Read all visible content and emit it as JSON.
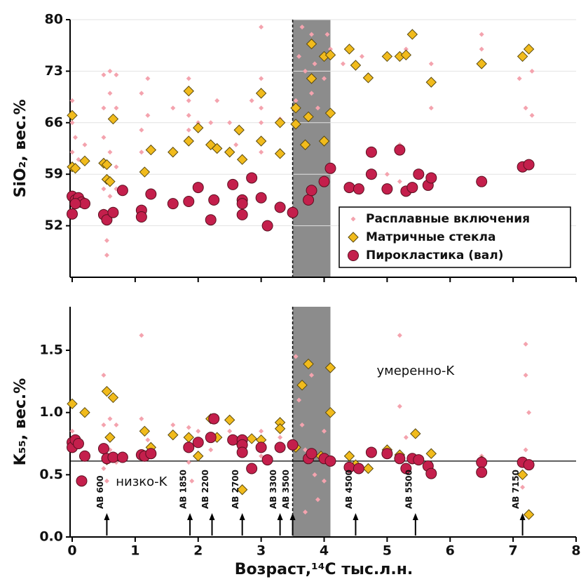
{
  "chart_data": [
    {
      "type": "scatter",
      "ylabel": "SiO₂, вес.%",
      "xlim": [
        0,
        8
      ],
      "xticks": [
        0,
        1,
        2,
        3,
        4,
        5,
        6,
        7,
        8
      ],
      "xtick_labels": false,
      "ylim": [
        45,
        80
      ],
      "yticks": [
        52,
        59,
        66,
        73,
        80
      ],
      "grid": true,
      "legend": "lower right",
      "shade": [
        3.5,
        4.1
      ],
      "vline": 3.5,
      "series": [
        {
          "name": "Расплавные включения",
          "color": "#f4a3ae",
          "marker": "small-diamond",
          "x": [
            0,
            0,
            0,
            0.05,
            0.1,
            0.2,
            0.5,
            0.5,
            0.5,
            0.5,
            0.5,
            0.55,
            0.55,
            0.6,
            0.6,
            0.6,
            0.6,
            0.7,
            0.7,
            0.7,
            0.7,
            1.1,
            1.1,
            1.1,
            1.2,
            1.2,
            1.6,
            1.6,
            1.85,
            1.85,
            1.85,
            1.85,
            2.0,
            2.2,
            2.3,
            2.5,
            2.6,
            2.85,
            3.0,
            3.0,
            3.0,
            3.0,
            3.0,
            3.3,
            3.55,
            3.6,
            3.65,
            3.7,
            3.8,
            3.8,
            3.85,
            3.9,
            4.0,
            4.05,
            4.1,
            4.3,
            4.6,
            5.0,
            5.2,
            5.2,
            5.3,
            5.7,
            5.7,
            6.5,
            6.5,
            7.1,
            7.2,
            7.3,
            7.3
          ],
          "values": [
            69,
            66,
            62,
            64,
            61,
            63,
            72.5,
            68,
            64,
            57,
            54,
            50,
            48,
            73,
            70,
            62,
            56,
            72.5,
            68,
            60,
            57,
            70,
            65,
            62,
            72,
            67,
            68,
            62,
            72,
            69,
            67,
            65,
            66,
            66,
            69,
            66,
            63,
            69,
            79,
            72,
            68,
            66,
            62,
            66.5,
            69,
            75,
            79,
            73,
            78,
            70,
            74,
            68,
            72,
            78,
            76,
            74,
            75,
            59,
            63,
            58,
            76,
            68,
            74,
            76,
            78,
            72,
            68,
            73,
            67
          ]
        },
        {
          "name": "Матричные стекла",
          "color": "#f1bb1c",
          "marker": "diamond",
          "x": [
            0,
            0,
            0.05,
            0.2,
            0.5,
            0.55,
            0.55,
            0.6,
            0.65,
            1.15,
            1.25,
            1.6,
            1.85,
            1.85,
            2,
            2.2,
            2.3,
            2.5,
            2.65,
            2.7,
            3,
            3,
            3.3,
            3.3,
            3.55,
            3.55,
            3.7,
            3.75,
            3.8,
            3.8,
            4,
            4,
            4.1,
            4.1,
            4.4,
            4.5,
            4.7,
            5,
            5.2,
            5.3,
            5.4,
            5.7,
            6.5,
            7.15,
            7.25
          ],
          "values": [
            67,
            60,
            59.8,
            60.8,
            60.5,
            60.3,
            58.3,
            58,
            66.5,
            59.3,
            62.3,
            62,
            70.3,
            63.5,
            65.3,
            63,
            62.5,
            62,
            65,
            61,
            70,
            63.5,
            61.8,
            66,
            65.8,
            68,
            63,
            66.8,
            76.7,
            72,
            63.5,
            75,
            67.3,
            75.2,
            76,
            73.8,
            72.1,
            75,
            75,
            75.2,
            78,
            71.5,
            74,
            75,
            76
          ]
        },
        {
          "name": "Пирокластика (вал)",
          "color": "#c41f4c",
          "marker": "circle",
          "x": [
            0,
            0,
            0.05,
            0.1,
            0.15,
            0.2,
            0.05,
            0.5,
            0.55,
            0.65,
            0.8,
            1.1,
            1.1,
            1.25,
            1.6,
            1.85,
            2,
            2.2,
            2.25,
            2.55,
            2.7,
            2.7,
            2.7,
            2.85,
            3,
            3.1,
            3.3,
            3.5,
            3.75,
            3.8,
            4,
            4.1,
            4.4,
            4.55,
            4.75,
            4.75,
            5,
            5.2,
            5.3,
            5.4,
            5.5,
            5.65,
            5.7,
            6.5,
            7.15,
            7.25
          ],
          "values": [
            56,
            53.6,
            55.5,
            55.8,
            55.2,
            55,
            55,
            53.5,
            52.8,
            53.8,
            56.8,
            54.1,
            53.2,
            56.3,
            55,
            55.3,
            57.2,
            52.8,
            55.5,
            57.6,
            55.5,
            55,
            53.5,
            58.5,
            55.8,
            52,
            54.5,
            53.8,
            55.5,
            56.8,
            58,
            59.8,
            57.2,
            57,
            62,
            59,
            57,
            62.3,
            56.7,
            57.2,
            59,
            57.5,
            58.5,
            58,
            60,
            60.3
          ]
        }
      ]
    },
    {
      "type": "scatter",
      "ylabel": "K₅₅, вес.%",
      "xlabel": "Возраст,¹⁴C тыс.л.н.",
      "xlim": [
        0,
        8
      ],
      "xticks": [
        0,
        1,
        2,
        3,
        4,
        5,
        6,
        7,
        8
      ],
      "xtick_labels": true,
      "ylim": [
        0,
        1.85
      ],
      "yticks": [
        {
          "value": 0,
          "label": "0.0"
        },
        0.5,
        {
          "value": 1,
          "label": "1.0"
        },
        1.5
      ],
      "grid": false,
      "shade": [
        3.5,
        4.1
      ],
      "vline": 3.5,
      "hline": 0.61,
      "annotations": [
        {
          "text": "умеренно-K",
          "x": 5.45,
          "y": 1.33
        },
        {
          "text": "низко-K",
          "x": 1.1,
          "y": 0.44
        }
      ],
      "arrows": [
        {
          "x": 0.55,
          "label": "AB 600"
        },
        {
          "x": 1.87,
          "label": "AB 1850"
        },
        {
          "x": 2.22,
          "label": "AB 2200"
        },
        {
          "x": 2.7,
          "label": "AB 2700"
        },
        {
          "x": 3.3,
          "label": "AB 3300"
        },
        {
          "x": 3.5,
          "label": "AB 3500"
        },
        {
          "x": 4.5,
          "label": "AB 4500"
        },
        {
          "x": 5.45,
          "label": "AB 5500"
        },
        {
          "x": 7.15,
          "label": "AB 7150"
        }
      ],
      "series": [
        {
          "color": "#f4a3ae",
          "marker": "small-diamond",
          "x": [
            0,
            0,
            0.05,
            0.5,
            0.5,
            0.5,
            0.55,
            0.6,
            0.6,
            0.7,
            0.7,
            1.1,
            1.1,
            1.2,
            1.6,
            1.85,
            1.85,
            1.9,
            2.0,
            2.2,
            2.5,
            2.7,
            3.0,
            3.0,
            3.3,
            3.55,
            3.6,
            3.65,
            3.7,
            3.7,
            3.8,
            3.85,
            3.9,
            4.0,
            4.0,
            4.5,
            5.2,
            5.2,
            5.3,
            5.4,
            5.7,
            6.5,
            7.2,
            7.2,
            7.25,
            7.2,
            7.15
          ],
          "values": [
            0.85,
            0.7,
            0.8,
            1.3,
            0.9,
            0.55,
            0.45,
            0.95,
            0.7,
            0.9,
            0.6,
            1.62,
            0.95,
            0.78,
            0.9,
            0.88,
            0.6,
            0.45,
            0.85,
            0.7,
            0.85,
            0.8,
            0.85,
            0.65,
            0.8,
            1.45,
            1.1,
            0.9,
            0.7,
            0.2,
            1.3,
            0.5,
            0.3,
            0.85,
            0.45,
            0.6,
            1.62,
            1.05,
            0.8,
            0.6,
            0.65,
            0.65,
            1.55,
            1.3,
            1,
            0.7,
            0.4
          ]
        },
        {
          "color": "#f1bb1c",
          "marker": "diamond",
          "x": [
            0,
            0.05,
            0.2,
            0.55,
            0.6,
            0.65,
            0.55,
            1.15,
            1.25,
            1.6,
            1.85,
            2,
            2.2,
            2.3,
            2.5,
            2.65,
            2.7,
            2.85,
            3,
            3.3,
            3.3,
            3.55,
            3.65,
            3.75,
            3.95,
            4.1,
            4.1,
            4.4,
            4.5,
            4.7,
            5,
            5.2,
            5.45,
            5.7,
            6.5,
            7.15,
            7.25
          ],
          "values": [
            1.07,
            0.75,
            1,
            1.17,
            0.8,
            1.12,
            0.62,
            0.85,
            0.72,
            0.82,
            0.8,
            0.65,
            0.95,
            0.8,
            0.94,
            0.76,
            0.38,
            0.79,
            0.78,
            0.92,
            0.87,
            0.72,
            1.22,
            1.39,
            0.65,
            1.36,
            1,
            0.65,
            0.58,
            0.55,
            0.7,
            0.66,
            0.83,
            0.67,
            0.61,
            0.5,
            0.18
          ]
        },
        {
          "color": "#c41f4c",
          "marker": "circle",
          "x": [
            0,
            0,
            0.05,
            0.1,
            0.15,
            0.2,
            0.5,
            0.55,
            0.65,
            0.8,
            1.1,
            1.15,
            1.25,
            1.85,
            2,
            2.2,
            2.25,
            2.55,
            2.7,
            2.7,
            2.7,
            2.85,
            3,
            3.1,
            3.3,
            3.5,
            3.75,
            3.8,
            4,
            4.1,
            4.4,
            4.55,
            4.75,
            5,
            5.2,
            5.3,
            5.4,
            5.5,
            5.65,
            5.7,
            6.5,
            6.5,
            7.15,
            7.25
          ],
          "values": [
            0.76,
            0.72,
            0.78,
            0.75,
            0.45,
            0.65,
            0.71,
            0.63,
            0.64,
            0.64,
            0.66,
            0.65,
            0.67,
            0.72,
            0.76,
            0.8,
            0.95,
            0.78,
            0.78,
            0.74,
            0.68,
            0.55,
            0.72,
            0.62,
            0.72,
            0.74,
            0.63,
            0.67,
            0.63,
            0.61,
            0.56,
            0.55,
            0.68,
            0.67,
            0.63,
            0.55,
            0.63,
            0.62,
            0.57,
            0.51,
            0.6,
            0.52,
            0.6,
            0.58
          ]
        }
      ]
    }
  ]
}
